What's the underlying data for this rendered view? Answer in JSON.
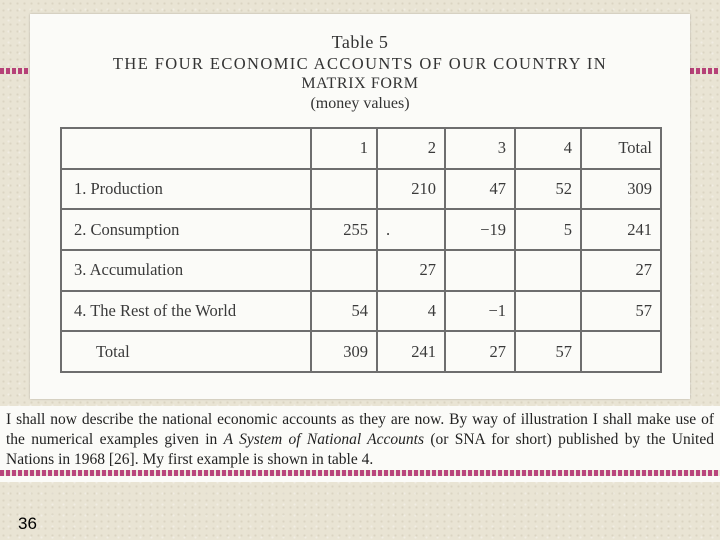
{
  "table_caption": {
    "label": "Table 5",
    "title_line1": "THE FOUR ECONOMIC ACCOUNTS OF OUR COUNTRY IN",
    "title_line2": "MATRIX FORM",
    "note": "(money values)"
  },
  "matrix": {
    "headers": [
      "",
      "1",
      "2",
      "3",
      "4",
      "Total"
    ],
    "rows": [
      {
        "label": "1. Production",
        "cells": [
          "",
          "210",
          "47",
          "52",
          "309"
        ]
      },
      {
        "label": "2. Consumption",
        "cells": [
          "255",
          ".",
          "−19",
          "5",
          "241"
        ]
      },
      {
        "label": "3. Accumulation",
        "cells": [
          "",
          "27",
          "",
          "",
          "27"
        ]
      },
      {
        "label": "4. The Rest of the World",
        "cells": [
          "54",
          "4",
          "−1",
          "",
          "57"
        ]
      },
      {
        "label": "Total",
        "cells": [
          "309",
          "241",
          "27",
          "57",
          ""
        ]
      }
    ]
  },
  "body_text": {
    "part1": "I shall now describe the national economic accounts as they are now. By way of illustration I shall make use of the numerical examples given in ",
    "italic": "A System of National Accounts",
    "part2": " (or SNA for short) published by the United Nations in 1968 [26]. My first example is shown in table 4."
  },
  "page_number": "36"
}
